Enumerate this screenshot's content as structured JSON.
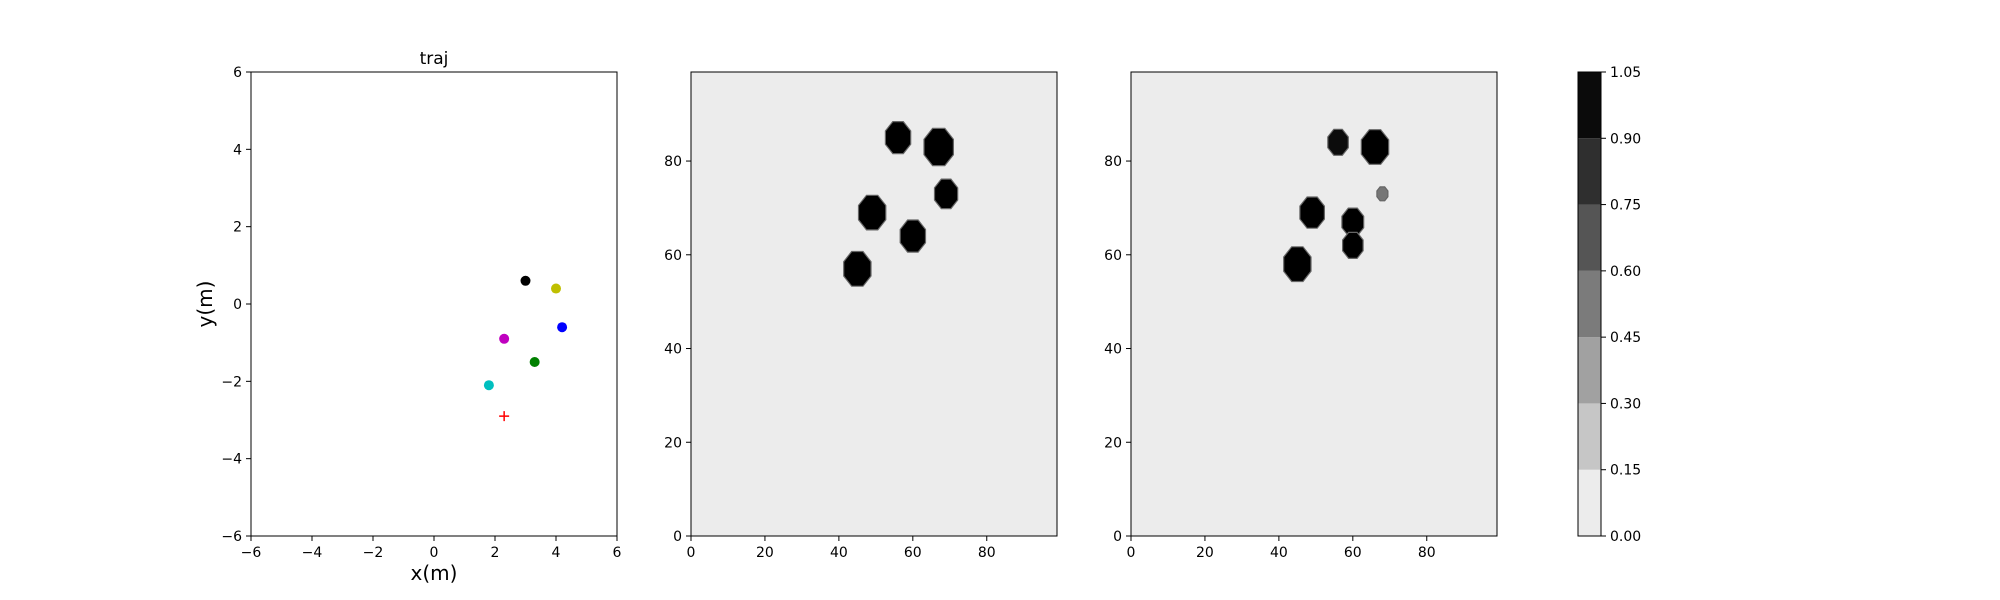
{
  "chart_data": [
    {
      "type": "scatter",
      "title": "traj",
      "xlabel": "x(m)",
      "ylabel": "y(m)",
      "xlim": [
        -6,
        6
      ],
      "ylim": [
        -6,
        6
      ],
      "xticks": [
        -6,
        -4,
        -2,
        0,
        2,
        4,
        6
      ],
      "yticks": [
        -6,
        -4,
        -2,
        0,
        2,
        4,
        6
      ],
      "points": [
        {
          "x": 3.0,
          "y": 0.6,
          "color": "#000000",
          "marker": "circle"
        },
        {
          "x": 4.0,
          "y": 0.4,
          "color": "#bfbf00",
          "marker": "circle"
        },
        {
          "x": 4.2,
          "y": -0.6,
          "color": "#0000ff",
          "marker": "circle"
        },
        {
          "x": 2.3,
          "y": -0.9,
          "color": "#bf00bf",
          "marker": "circle"
        },
        {
          "x": 3.3,
          "y": -1.5,
          "color": "#008000",
          "marker": "circle"
        },
        {
          "x": 1.8,
          "y": -2.1,
          "color": "#00bfbf",
          "marker": "circle"
        },
        {
          "x": 2.3,
          "y": -2.9,
          "color": "#ff0000",
          "marker": "plus"
        }
      ],
      "grid": false
    },
    {
      "type": "heatmap",
      "xlim": [
        0,
        99
      ],
      "ylim": [
        0,
        99
      ],
      "xticks": [
        0,
        20,
        40,
        60,
        80
      ],
      "yticks": [
        0,
        20,
        40,
        60,
        80
      ],
      "background_value": 0.05,
      "blobs": [
        {
          "x": 45,
          "y": 57,
          "r": 4,
          "value": 1.0
        },
        {
          "x": 49,
          "y": 69,
          "r": 4,
          "value": 1.0
        },
        {
          "x": 56,
          "y": 85,
          "r": 3.7,
          "value": 1.0
        },
        {
          "x": 67,
          "y": 83,
          "r": 4.3,
          "value": 1.0
        },
        {
          "x": 60,
          "y": 64,
          "r": 3.7,
          "value": 1.0
        },
        {
          "x": 69,
          "y": 73,
          "r": 3.4,
          "value": 1.0
        }
      ]
    },
    {
      "type": "heatmap",
      "xlim": [
        0,
        99
      ],
      "ylim": [
        0,
        99
      ],
      "xticks": [
        0,
        20,
        40,
        60,
        80
      ],
      "yticks": [
        0,
        20,
        40,
        60,
        80
      ],
      "background_value": 0.05,
      "blobs": [
        {
          "x": 45,
          "y": 58,
          "r": 4,
          "value": 1.0
        },
        {
          "x": 49,
          "y": 69,
          "r": 3.6,
          "value": 1.0
        },
        {
          "x": 56,
          "y": 84,
          "r": 3.0,
          "value": 0.95
        },
        {
          "x": 66,
          "y": 83,
          "r": 4.0,
          "value": 1.0
        },
        {
          "x": 60,
          "y": 67,
          "r": 3.2,
          "value": 1.0
        },
        {
          "x": 60,
          "y": 62,
          "r": 3.0,
          "value": 1.0
        },
        {
          "x": 68,
          "y": 73,
          "r": 1.6,
          "value": 0.5
        }
      ]
    }
  ],
  "colorbar": {
    "ticks": [
      "0.00",
      "0.15",
      "0.30",
      "0.45",
      "0.60",
      "0.75",
      "0.90",
      "1.05"
    ],
    "colors": [
      "#ececec",
      "#c6c6c6",
      "#a1a1a1",
      "#7b7b7b",
      "#555555",
      "#2f2f2f",
      "#0b0b0b"
    ]
  }
}
